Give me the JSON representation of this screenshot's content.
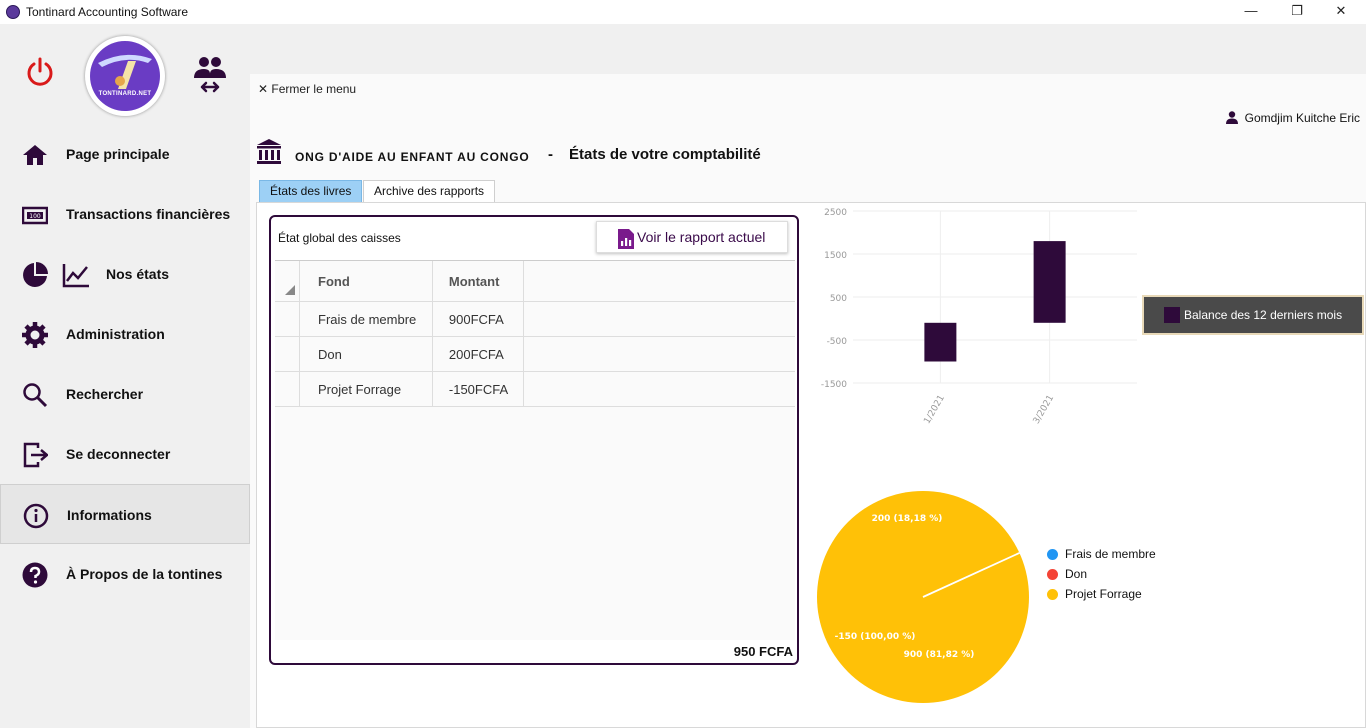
{
  "window": {
    "title": "Tontinard Accounting Software",
    "minimize": "—",
    "maximize": "❐",
    "close": "✕"
  },
  "sidebar": {
    "logo_text": "TONTINARD.NET",
    "items": [
      {
        "label": "Page principale",
        "icon": "home-icon"
      },
      {
        "label": "Transactions financières",
        "icon": "banknote-icon"
      },
      {
        "label": "Nos états",
        "icon": "chart-icon"
      },
      {
        "label": "Administration",
        "icon": "gear-icon"
      },
      {
        "label": "Rechercher",
        "icon": "search-icon"
      },
      {
        "label": "Se deconnecter",
        "icon": "logout-icon"
      },
      {
        "label": "Informations",
        "icon": "info-icon"
      },
      {
        "label": "À Propos de la  tontines",
        "icon": "help-icon"
      }
    ]
  },
  "header": {
    "close_menu": "Fermer le menu",
    "user_name": "Gomdjim Kuitche Eric",
    "org_name": "ONG D'AIDE AU ENFANT AU CONGO",
    "separator": "-",
    "subtitle": "États de votre comptabilité"
  },
  "tabs": [
    {
      "label": "États des livres",
      "active": true
    },
    {
      "label": "Archive des rapports",
      "active": false
    }
  ],
  "caisses": {
    "title": "État global des caisses",
    "report_button": "Voir le rapport actuel",
    "columns": [
      "Fond",
      "Montant"
    ],
    "rows": [
      {
        "fond": "Frais de membre",
        "montant": "900FCFA"
      },
      {
        "fond": "Don",
        "montant": "200FCFA"
      },
      {
        "fond": "Projet Forrage",
        "montant": "-150FCFA"
      }
    ],
    "total": "950 FCFA"
  },
  "colors": {
    "primary": "#2e0a3a",
    "power": "#d91a1a",
    "tab_active": "#9dd0f5",
    "pie_blue": "#2196f3",
    "pie_red": "#f44336",
    "pie_yellow": "#ffc107"
  },
  "chart_data": [
    {
      "type": "bar",
      "categories": [
        "1/2021",
        "3/2021"
      ],
      "series": [
        {
          "name": "Balance des 12 derniers mois",
          "low": [
            -1000,
            -100
          ],
          "high": [
            -100,
            1800
          ]
        }
      ],
      "yticks": [
        2500,
        1500,
        500,
        -500,
        -1500
      ],
      "ylim": [
        -1500,
        2500
      ],
      "grid": true,
      "legend": "right"
    },
    {
      "type": "pie",
      "slices": [
        {
          "name": "Frais de membre",
          "value": 900,
          "label": "900 (81,82 %)",
          "color": "#2196f3"
        },
        {
          "name": "Don",
          "value": 200,
          "label": "200 (18,18 %)",
          "color": "#f44336"
        },
        {
          "name": "Projet Forrage",
          "value": -150,
          "label": "-150 (100,00 %)",
          "color": "#ffc107"
        }
      ],
      "legend": "right"
    }
  ]
}
